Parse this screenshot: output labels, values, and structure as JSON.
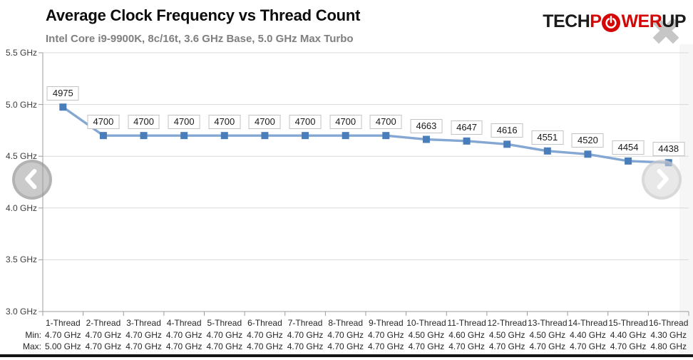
{
  "header": {
    "title": "Average Clock Frequency vs Thread Count",
    "subtitle": "Intel Core i9-9900K, 8c/16t, 3.6 GHz Base, 5.0 GHz Max Turbo"
  },
  "logo": {
    "part1": "TECH",
    "part2": "P",
    "part3": "WER",
    "part4": "UP",
    "red": "#d40707",
    "dark": "#1b1b1b"
  },
  "colors": {
    "series_line": "#84a7d3",
    "series_marker": "#4a7ebb",
    "grid_line": "#d9d9d9",
    "axis_line": "#9c9c9c",
    "label_box_border": "#c3c3c3",
    "title_text": "#0d0d0d",
    "subtitle_text": "#7f7f7f"
  },
  "chart_data": {
    "type": "line",
    "title": "Average Clock Frequency vs Thread Count",
    "subtitle": "Intel Core i9-9900K, 8c/16t, 3.6 GHz Base, 5.0 GHz Max Turbo",
    "unit": "MHz",
    "categories": [
      "1-Thread",
      "2-Thread",
      "3-Thread",
      "4-Thread",
      "5-Thread",
      "6-Thread",
      "7-Thread",
      "8-Thread",
      "9-Thread",
      "10-Thread",
      "11-Thread",
      "12-Thread",
      "13-Thread",
      "14-Thread",
      "15-Thread",
      "16-Thread"
    ],
    "values": [
      4975,
      4700,
      4700,
      4700,
      4700,
      4700,
      4700,
      4700,
      4700,
      4663,
      4647,
      4616,
      4551,
      4520,
      4454,
      4438
    ],
    "data_labels": [
      "4975",
      "4700",
      "4700",
      "4700",
      "4700",
      "4700",
      "4700",
      "4700",
      "4700",
      "4663",
      "4647",
      "4616",
      "4551",
      "4520",
      "4454",
      "4438"
    ],
    "ytick_labels": [
      "5.5 GHz",
      "5.0 GHz",
      "4.5 GHz",
      "4.0 GHz",
      "3.5 GHz",
      "3.0 GHz"
    ],
    "ylim_mhz": [
      3000,
      5500
    ],
    "grid": true,
    "legend": false,
    "stat_rows": {
      "min_label": "Min:",
      "max_label": "Max:",
      "min_values": [
        "4.70 GHz",
        "4.70 GHz",
        "4.70 GHz",
        "4.70 GHz",
        "4.70 GHz",
        "4.70 GHz",
        "4.70 GHz",
        "4.70 GHz",
        "4.70 GHz",
        "4.50 GHz",
        "4.60 GHz",
        "4.50 GHz",
        "4.50 GHz",
        "4.40 GHz",
        "4.40 GHz",
        "4.30 GHz"
      ],
      "max_values": [
        "5.00 GHz",
        "4.70 GHz",
        "4.70 GHz",
        "4.70 GHz",
        "4.70 GHz",
        "4.70 GHz",
        "4.70 GHz",
        "4.70 GHz",
        "4.70 GHz",
        "4.70 GHz",
        "4.70 GHz",
        "4.70 GHz",
        "4.70 GHz",
        "4.70 GHz",
        "4.70 GHz",
        "4.80 GHz"
      ]
    }
  }
}
